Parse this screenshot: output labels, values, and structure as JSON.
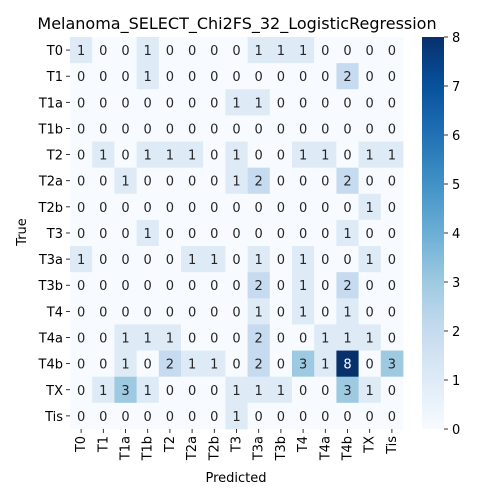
{
  "chart_data": {
    "type": "heatmap",
    "title": "Melanoma_SELECT_Chi2FS_32_LogisticRegression",
    "xlabel": "Predicted",
    "ylabel": "True",
    "x_categories": [
      "T0",
      "T1",
      "T1a",
      "T1b",
      "T2",
      "T2a",
      "T2b",
      "T3",
      "T3a",
      "T3b",
      "T4",
      "T4a",
      "T4b",
      "TX",
      "Tis"
    ],
    "y_categories": [
      "T0",
      "T1",
      "T1a",
      "T1b",
      "T2",
      "T2a",
      "T2b",
      "T3",
      "T3a",
      "T3b",
      "T4",
      "T4a",
      "T4b",
      "TX",
      "Tis"
    ],
    "matrix": [
      [
        1,
        0,
        0,
        1,
        0,
        0,
        0,
        0,
        1,
        1,
        1,
        0,
        0,
        0,
        0
      ],
      [
        0,
        0,
        0,
        1,
        0,
        0,
        0,
        0,
        0,
        0,
        0,
        0,
        2,
        0,
        0
      ],
      [
        0,
        0,
        0,
        0,
        0,
        0,
        0,
        1,
        1,
        0,
        0,
        0,
        0,
        0,
        0
      ],
      [
        0,
        0,
        0,
        0,
        0,
        0,
        0,
        0,
        0,
        0,
        0,
        0,
        0,
        0,
        0
      ],
      [
        0,
        1,
        0,
        1,
        1,
        1,
        0,
        1,
        0,
        0,
        1,
        1,
        0,
        1,
        1
      ],
      [
        0,
        0,
        1,
        0,
        0,
        0,
        0,
        1,
        2,
        0,
        0,
        0,
        2,
        0,
        0
      ],
      [
        0,
        0,
        0,
        0,
        0,
        0,
        0,
        0,
        0,
        0,
        0,
        0,
        0,
        1,
        0
      ],
      [
        0,
        0,
        0,
        1,
        0,
        0,
        0,
        0,
        0,
        0,
        0,
        0,
        1,
        0,
        0
      ],
      [
        1,
        0,
        0,
        0,
        0,
        1,
        1,
        0,
        1,
        0,
        1,
        0,
        0,
        1,
        0
      ],
      [
        0,
        0,
        0,
        0,
        0,
        0,
        0,
        0,
        2,
        0,
        1,
        0,
        2,
        0,
        0
      ],
      [
        0,
        0,
        0,
        0,
        0,
        0,
        0,
        0,
        1,
        0,
        1,
        0,
        1,
        0,
        0
      ],
      [
        0,
        0,
        1,
        1,
        1,
        0,
        0,
        0,
        2,
        0,
        0,
        1,
        1,
        1,
        0
      ],
      [
        0,
        0,
        1,
        0,
        2,
        1,
        1,
        0,
        2,
        0,
        3,
        1,
        8,
        0,
        3
      ],
      [
        0,
        1,
        3,
        1,
        0,
        0,
        0,
        1,
        1,
        1,
        0,
        0,
        3,
        1,
        0
      ],
      [
        0,
        0,
        0,
        0,
        0,
        0,
        0,
        1,
        0,
        0,
        0,
        0,
        0,
        0,
        0
      ]
    ],
    "value_range": [
      0,
      8
    ],
    "colorbar_ticks": [
      0,
      1,
      2,
      3,
      4,
      5,
      6,
      7,
      8
    ],
    "colormap": "Blues",
    "colormap_low": "#f7fbff",
    "colormap_high": "#08306b"
  }
}
